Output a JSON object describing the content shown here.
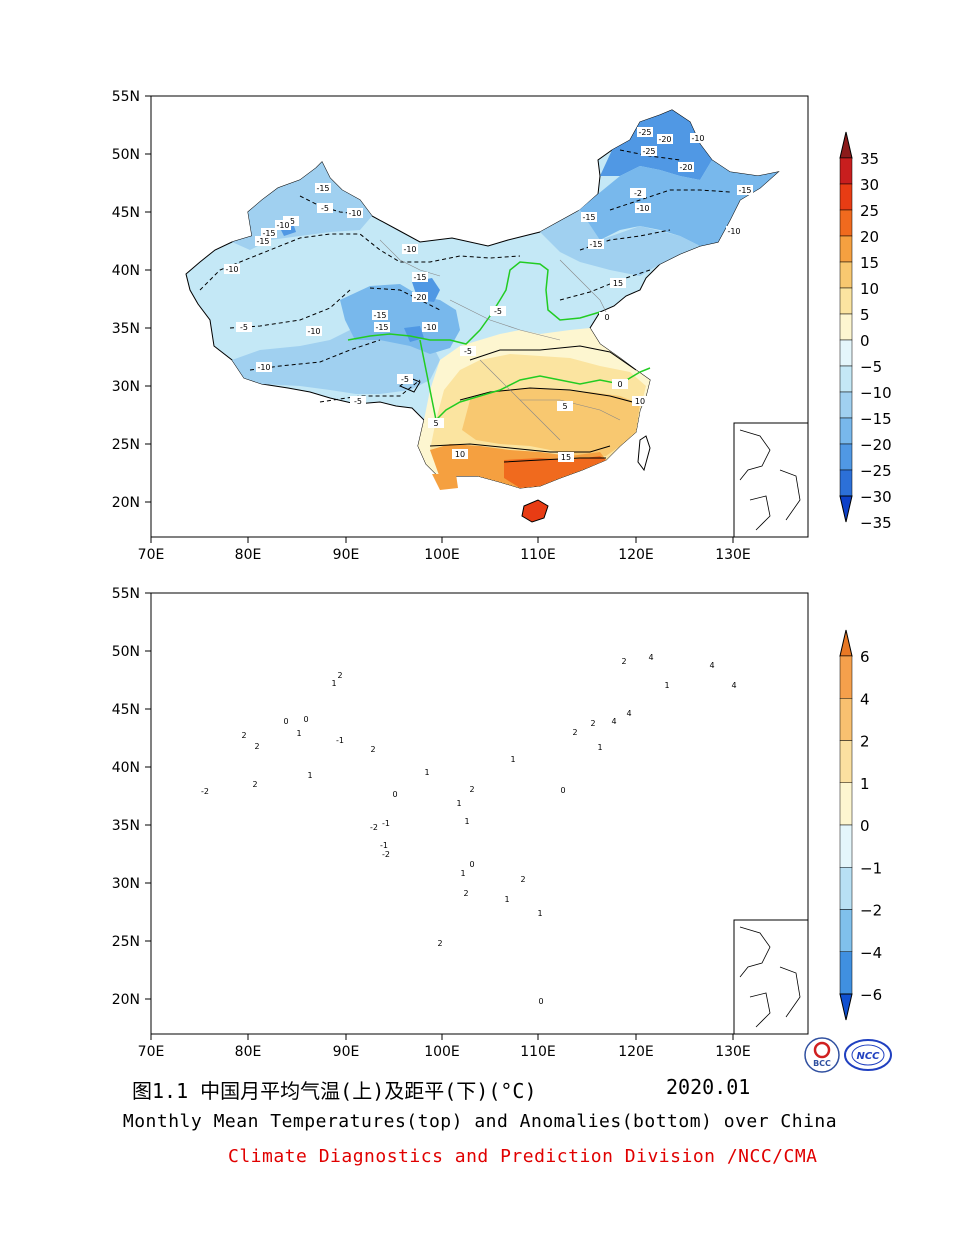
{
  "top_map": {
    "lat_ticks": [
      "55N",
      "50N",
      "45N",
      "40N",
      "35N",
      "30N",
      "25N",
      "20N"
    ],
    "lon_ticks": [
      "70E",
      "80E",
      "90E",
      "100E",
      "110E",
      "120E",
      "130E"
    ],
    "colorbar_labels": [
      "35",
      "30",
      "25",
      "20",
      "15",
      "10",
      "5",
      "0",
      "−5",
      "−10",
      "−15",
      "−20",
      "−25",
      "−30",
      "−35"
    ],
    "colorbar_colors": [
      "#8b1a1a",
      "#c81e1e",
      "#e83c14",
      "#f06a1e",
      "#f5a040",
      "#f8c870",
      "#fbe4a0",
      "#fdf6d0",
      "#e4f6fb",
      "#c4e8f6",
      "#a0d0f0",
      "#78b8ec",
      "#5098e4",
      "#2c70d8",
      "#0c40c8"
    ],
    "contour_labels": [
      "-25",
      "-25",
      "-20",
      "-20",
      "-15",
      "-15",
      "-10",
      "-10",
      "-15",
      "-15",
      "-5",
      "-10",
      "-5",
      "-10",
      "-15",
      "-15",
      "-10",
      "-5",
      "-15",
      "-20",
      "-10",
      "-5",
      "-5",
      "-5",
      "-10",
      "-15",
      "-5",
      "0",
      "0",
      "5",
      "5",
      "10",
      "10",
      "15",
      "15",
      "-10",
      "-10",
      "-2",
      "-15",
      "-10"
    ]
  },
  "bottom_map": {
    "lat_ticks": [
      "55N",
      "50N",
      "45N",
      "40N",
      "35N",
      "30N",
      "25N",
      "20N"
    ],
    "lon_ticks": [
      "70E",
      "80E",
      "90E",
      "100E",
      "110E",
      "120E",
      "130E"
    ],
    "colorbar_labels": [
      "6",
      "4",
      "2",
      "1",
      "0",
      "−1",
      "−2",
      "−4",
      "−6"
    ],
    "colorbar_colors": [
      "#e87824",
      "#f5a04c",
      "#f8c070",
      "#fbe0a0",
      "#fdf6d0",
      "#e4f6fb",
      "#b8e0f4",
      "#80c0ec",
      "#4090e0",
      "#1050d0"
    ],
    "contour_labels": [
      "2",
      "4",
      "4",
      "2",
      "1",
      "0",
      "-1",
      "2",
      "0",
      "2",
      "1",
      "2",
      "1",
      "1",
      "0",
      "-1",
      "-2",
      "1",
      "2",
      "4",
      "2",
      "1",
      "0",
      "1",
      "1",
      "2",
      "1",
      "1",
      "2",
      "0",
      "-1",
      "-2",
      "1",
      "2",
      "0",
      "4",
      "1",
      "4",
      "2",
      "-2",
      "2"
    ]
  },
  "caption": {
    "figure_title_cn": "图1.1  中国月平均气温(上)及距平(下)(°C)",
    "date": "2020.01",
    "title_en": "Monthly Mean Temperatures(top) and Anomalies(bottom) over China",
    "credit": "Climate Diagnostics and Prediction Division /NCC/CMA"
  },
  "logos": [
    "BCC",
    "NCC"
  ]
}
